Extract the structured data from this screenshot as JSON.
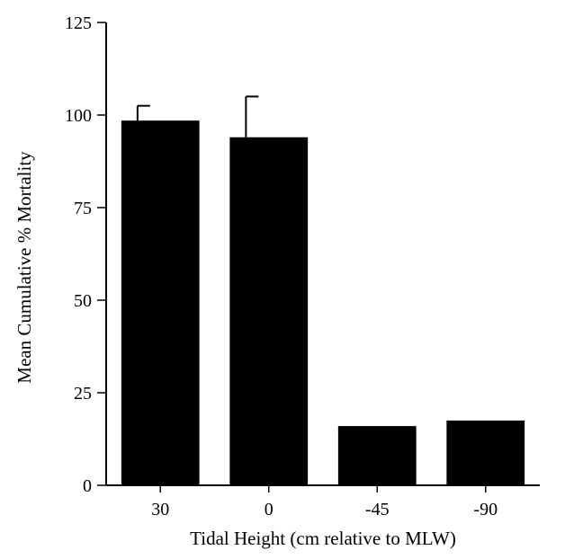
{
  "chart_data": {
    "type": "bar",
    "title": "",
    "xlabel": "Tidal Height (cm relative to MLW)",
    "ylabel": "Mean Cumulative % Mortality",
    "categories": [
      "30",
      "0",
      "-45",
      "-90"
    ],
    "values": [
      98.5,
      94,
      16,
      17.5
    ],
    "error_upper": [
      4,
      11,
      0,
      0
    ],
    "ylim": [
      0,
      125
    ],
    "yticks": [
      0,
      25,
      50,
      75,
      100,
      125
    ],
    "grid": false,
    "bar_color": "#000000"
  }
}
